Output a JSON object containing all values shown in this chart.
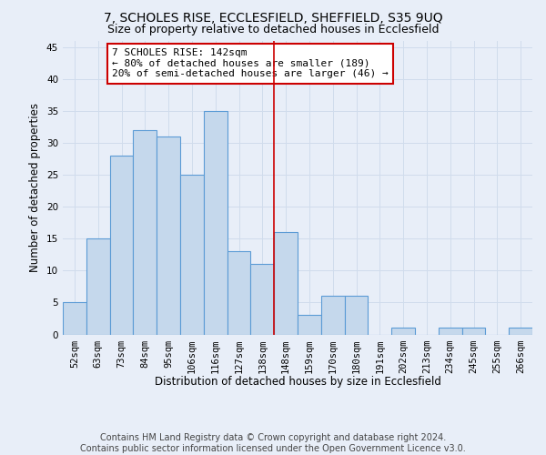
{
  "title": "7, SCHOLES RISE, ECCLESFIELD, SHEFFIELD, S35 9UQ",
  "subtitle": "Size of property relative to detached houses in Ecclesfield",
  "xlabel": "Distribution of detached houses by size in Ecclesfield",
  "ylabel": "Number of detached properties",
  "footnote1": "Contains HM Land Registry data © Crown copyright and database right 2024.",
  "footnote2": "Contains public sector information licensed under the Open Government Licence v3.0.",
  "bin_labels": [
    "52sqm",
    "63sqm",
    "73sqm",
    "84sqm",
    "95sqm",
    "106sqm",
    "116sqm",
    "127sqm",
    "138sqm",
    "148sqm",
    "159sqm",
    "170sqm",
    "180sqm",
    "191sqm",
    "202sqm",
    "213sqm",
    "234sqm",
    "245sqm",
    "255sqm",
    "266sqm"
  ],
  "bar_values": [
    5,
    15,
    28,
    32,
    31,
    25,
    35,
    13,
    11,
    16,
    3,
    6,
    6,
    0,
    1,
    0,
    1,
    1,
    0,
    1
  ],
  "bar_color": "#c5d8ec",
  "bar_edge_color": "#5b9bd5",
  "grid_color": "#d0dcec",
  "background_color": "#e8eef8",
  "annotation_box_color": "#ffffff",
  "annotation_border_color": "#cc0000",
  "marker_line_color": "#cc0000",
  "annotation_text_line1": "7 SCHOLES RISE: 142sqm",
  "annotation_text_line2": "← 80% of detached houses are smaller (189)",
  "annotation_text_line3": "20% of semi-detached houses are larger (46) →",
  "ylim": [
    0,
    46
  ],
  "yticks": [
    0,
    5,
    10,
    15,
    20,
    25,
    30,
    35,
    40,
    45
  ],
  "title_fontsize": 10,
  "subtitle_fontsize": 9,
  "axis_label_fontsize": 8.5,
  "tick_fontsize": 7.5,
  "annotation_fontsize": 8,
  "footnote_fontsize": 7
}
